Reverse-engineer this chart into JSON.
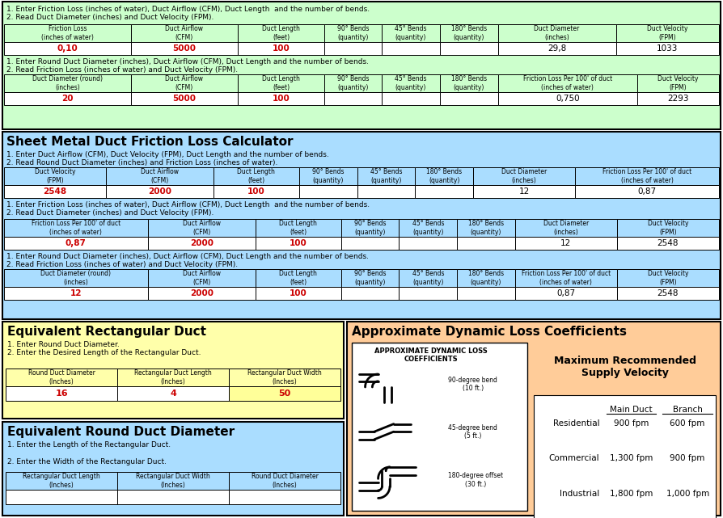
{
  "bg_color": "#ffffff",
  "flex_bg": "#ccffcc",
  "sm_bg": "#aaddff",
  "rect_bg": "#ffffaa",
  "round_bg": "#aaddff",
  "dynamic_bg": "#ffcc99",
  "white": "#ffffff",
  "red_text": "#cc0000",
  "black_text": "#000000",
  "title_sheet_metal": "Sheet Metal Duct Friction Loss Calculator",
  "title_rect_duct": "Equivalent Rectangular Duct",
  "title_round_duct": "Equivalent Round Duct Diameter",
  "title_dynamic": "Approximate Dynamic Loss Coefficients",
  "flex_instr1": "1. Enter Friction Loss (inches of water), Duct Airflow (CFM), Duct Length  and the number of bends.\n2. Read Duct Diameter (inches) and Duct Velocity (FPM).",
  "flex_instr2": "1. Enter Round Duct Diameter (inches), Duct Airflow (CFM), Duct Length and the number of bends.\n2. Read Friction Loss (inches of water) and Duct Velocity (FPM).",
  "sm_instr1": "1. Enter Duct Airflow (CFM), Duct Velocity (FPM), Duct Length and the number of bends.\n2. Read Round Duct Diameter (inches) and Friction Loss (inches of water).",
  "sm_instr2": "1. Enter Friction Loss (inches of water), Duct Airflow (CFM), Duct Length  and the number of bends.\n2. Read Duct Diameter (inches) and Duct Velocity (FPM).",
  "sm_instr3": "1. Enter Round Duct Diameter (inches), Duct Airflow (CFM), Duct Length and the number of bends.\n2. Read Friction Loss (inches of water) and Duct Velocity (FPM).",
  "flex_row1_headers": [
    "Friction Loss\n(inches of water)",
    "Duct Airflow\n(CFM)",
    "Duct Length\n(feet)",
    "90° Bends\n(quantity)",
    "45° Bends\n(quantity)",
    "180° Bends\n(quantity)",
    "Duct Diameter\n(inches)",
    "Duct Velocity\n(FPM)"
  ],
  "flex_row1_vals": [
    "0,10",
    "5000",
    "100",
    "",
    "",
    "",
    "29,8",
    "1033"
  ],
  "flex_row1_red": [
    true,
    true,
    true,
    false,
    false,
    false,
    false,
    false
  ],
  "flex_row2_headers": [
    "Duct Diameter (round)\n(inches)",
    "Duct Airflow\n(CFM)",
    "Duct Length\n(feet)",
    "90° Bends\n(quantity)",
    "45° Bends\n(quantity)",
    "180° Bends\n(quantity)",
    "Friction Loss Per 100' of duct\n(inches of water)",
    "Duct Velocity\n(FPM)"
  ],
  "flex_row2_vals": [
    "20",
    "5000",
    "100",
    "",
    "",
    "",
    "0,750",
    "2293"
  ],
  "flex_row2_red": [
    true,
    true,
    true,
    false,
    false,
    false,
    false,
    false
  ],
  "sm_row1_headers": [
    "Duct Velocity\n(FPM)",
    "Duct Airflow\n(CFM)",
    "Duct Length\n(feet)",
    "90° Bends\n(quantity)",
    "45° Bends\n(quantity)",
    "180° Bends\n(quantity)",
    "Duct Diameter\n(inches)",
    "Friction Loss Per 100' of duct\n(inches of water)"
  ],
  "sm_row1_vals": [
    "2548",
    "2000",
    "100",
    "",
    "",
    "",
    "12",
    "0,87"
  ],
  "sm_row1_red": [
    true,
    true,
    true,
    false,
    false,
    false,
    false,
    false
  ],
  "sm_row2_headers": [
    "Friction Loss Per 100' of duct\n(inches of water)",
    "Duct Airflow\n(CFM)",
    "Duct Length\n(feet)",
    "90° Bends\n(quantity)",
    "45° Bends\n(quantity)",
    "180° Bends\n(quantity)",
    "Duct Diameter\n(inches)",
    "Duct Velocity\n(FPM)"
  ],
  "sm_row2_vals": [
    "0,87",
    "2000",
    "100",
    "",
    "",
    "",
    "12",
    "2548"
  ],
  "sm_row2_red": [
    true,
    true,
    true,
    false,
    false,
    false,
    false,
    false
  ],
  "sm_row3_headers": [
    "Duct Diameter (round)\n(inches)",
    "Duct Airflow\n(CFM)",
    "Duct Length\n(feet)",
    "90° Bends\n(quantity)",
    "45° Bends\n(quantity)",
    "180° Bends\n(quantity)",
    "Friction Loss Per 100' of duct\n(inches of water)",
    "Duct Velocity\n(FPM)"
  ],
  "sm_row3_vals": [
    "12",
    "2000",
    "100",
    "",
    "",
    "",
    "0,87",
    "2548"
  ],
  "sm_row3_red": [
    true,
    true,
    true,
    false,
    false,
    false,
    false,
    false
  ],
  "rect_instr": "1. Enter Round Duct Diameter.\n2. Enter the Desired Length of the Rectangular Duct.",
  "rect_headers": [
    "Round Duct Diameter\n(Inches)",
    "Rectangular Duct Length\n(Inches)",
    "Rectangular Duct Width\n(Inches)"
  ],
  "rect_vals": [
    "16",
    "4",
    "50"
  ],
  "rect_yellow": [
    false,
    false,
    true
  ],
  "round_instr": "1. Enter the Length of the Rectangular Duct.\n\n2. Enter the Width of the Rectangular Duct.",
  "round_headers": [
    "Rectangular Duct Length\n(Inches)",
    "Rectangular Duct Width\n(Inches)",
    "Round Duct Diameter\n(Inches)"
  ],
  "round_vals": [
    "",
    "",
    ""
  ],
  "round_red": [
    false,
    false,
    false
  ],
  "dynamic_inner_title": "APPROXIMATE DYNAMIC LOSS\nCOEFFICIENTS",
  "bend90_label": "90-degree bend\n(10 ft.)",
  "bend45_label": "45-degree bend\n(5 ft.)",
  "bend180_label": "180-degree offset\n(30 ft.)",
  "vel_title": "Maximum Recommended\nSupply Velocity",
  "vel_rows": [
    [
      "Residential",
      "900 fpm",
      "600 fpm"
    ],
    [
      "Commercial",
      "1,300 fpm",
      "900 fpm"
    ],
    [
      "Industrial",
      "1,800 fpm",
      "1,000 fpm"
    ]
  ],
  "col_widths_8a": [
    118,
    100,
    80,
    54,
    54,
    54,
    110,
    96
  ],
  "col_widths_8b": [
    118,
    100,
    80,
    54,
    54,
    54,
    130,
    76
  ],
  "col_widths_sm1": [
    95,
    100,
    80,
    54,
    54,
    54,
    95,
    134
  ],
  "col_widths_sm23": [
    134,
    100,
    80,
    54,
    54,
    54,
    95,
    95
  ]
}
